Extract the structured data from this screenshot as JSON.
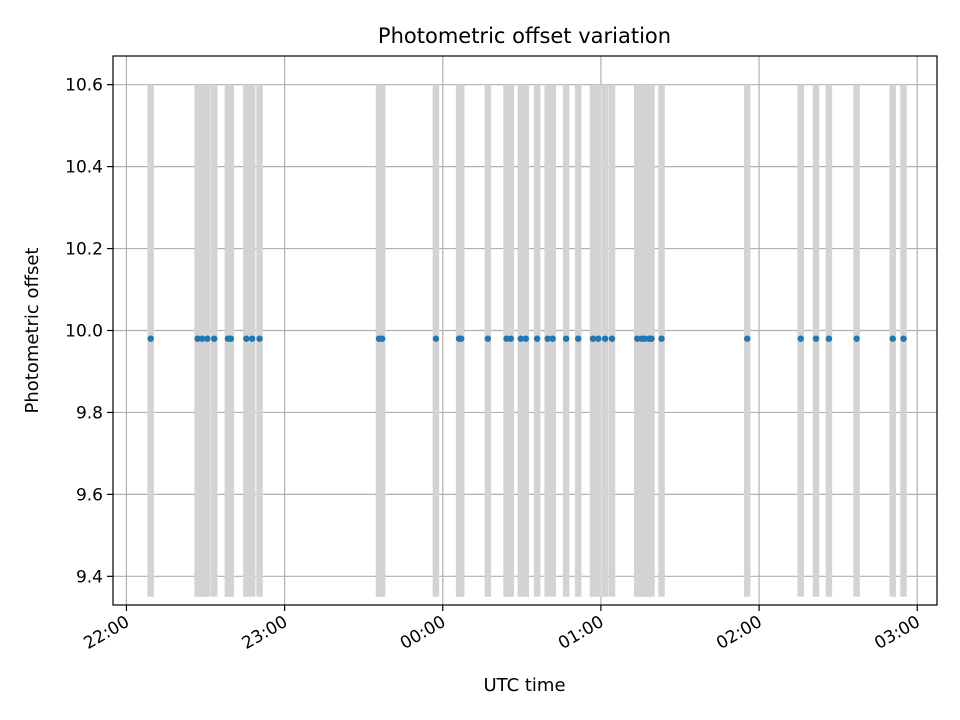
{
  "chart_data": {
    "type": "scatter",
    "title": "Photometric offset variation",
    "xlabel": "UTC time",
    "ylabel": "Photometric offset",
    "x_ticks": [
      {
        "value": 0,
        "label": "22:00"
      },
      {
        "value": 60,
        "label": "23:00"
      },
      {
        "value": 120,
        "label": "00:00"
      },
      {
        "value": 180,
        "label": "01:00"
      },
      {
        "value": 240,
        "label": "02:00"
      },
      {
        "value": 300,
        "label": "03:00"
      }
    ],
    "y_ticks": [
      {
        "value": 9.4,
        "label": "9.4"
      },
      {
        "value": 9.6,
        "label": "9.6"
      },
      {
        "value": 9.8,
        "label": "9.8"
      },
      {
        "value": 10.0,
        "label": "10.0"
      },
      {
        "value": 10.2,
        "label": "10.2"
      },
      {
        "value": 10.4,
        "label": "10.4"
      },
      {
        "value": 10.6,
        "label": "10.6"
      }
    ],
    "xlim": [
      -5.1,
      307.5
    ],
    "ylim": [
      9.33,
      10.67
    ],
    "grid": true,
    "band_range": [
      9.35,
      10.6
    ],
    "colors": {
      "points": "#1f77b4",
      "bands": "#d3d3d3",
      "grid": "#b0b0b0"
    },
    "series": [
      {
        "x": [
          9.2,
          27.0,
          28.7,
          30.7,
          33.3,
          38.5,
          39.6,
          45.5,
          47.7,
          50.5,
          95.8,
          97.0,
          117.4,
          126.2,
          127.0,
          137.1,
          144.2,
          145.8,
          149.6,
          151.5,
          155.8,
          159.8,
          161.7,
          166.8,
          171.4,
          177.0,
          179.0,
          181.6,
          184.2,
          193.8,
          195.5,
          196.6,
          198.3,
          199.2,
          203.0,
          235.5,
          255.8,
          261.6,
          266.5,
          277.0,
          290.7,
          294.8
        ],
        "y": [
          9.98,
          9.98,
          9.98,
          9.98,
          9.98,
          9.98,
          9.98,
          9.98,
          9.98,
          9.98,
          9.98,
          9.98,
          9.98,
          9.98,
          9.98,
          9.98,
          9.98,
          9.98,
          9.98,
          9.98,
          9.98,
          9.98,
          9.98,
          9.98,
          9.98,
          9.98,
          9.98,
          9.98,
          9.98,
          9.98,
          9.98,
          9.98,
          9.98,
          9.98,
          9.98,
          9.98,
          9.98,
          9.98,
          9.98,
          9.98,
          9.98,
          9.98
        ]
      }
    ]
  }
}
